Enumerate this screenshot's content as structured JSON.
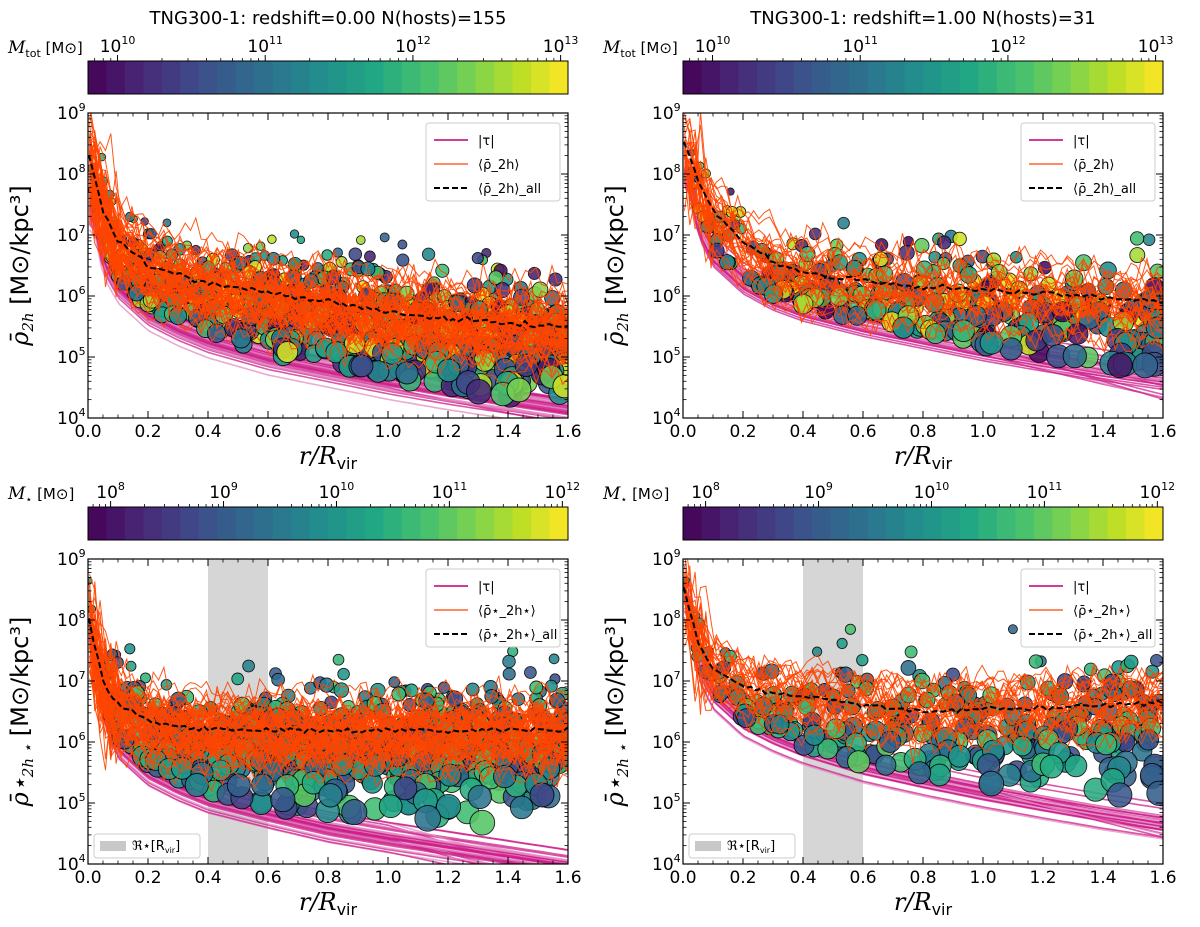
{
  "chart_data": [
    {
      "type": "scatter",
      "panel": "top-left",
      "title": "TNG300-1: redshift=0.00  N(hosts)=155",
      "colorbar": {
        "label": "M_tot [M⊙]",
        "label_main": "M",
        "label_sub": "tot",
        "label_unit": "[M⊙]",
        "ticks": [
          "10",
          "10",
          "10",
          "10"
        ],
        "tick_exps": [
          "10",
          "11",
          "12",
          "13"
        ],
        "range_log": [
          9.8,
          13.05
        ]
      },
      "xlabel": "r/R_vir",
      "xlabel_main": "r/R",
      "xlabel_sub": "vir",
      "ylabel": "ρ̄_2h [M⊙/kpc³]",
      "ylabel_sym": "ρ̄",
      "ylabel_sub": "2h",
      "ylabel_unit": "[M⊙/kpc³]",
      "xlim": [
        0.0,
        1.6
      ],
      "ylim_log": [
        4,
        9
      ],
      "xticks": [
        "0.0",
        "0.2",
        "0.4",
        "0.6",
        "0.8",
        "1.0",
        "1.2",
        "1.4",
        "1.6"
      ],
      "yticks": [
        "10",
        "10",
        "10",
        "10",
        "10",
        "10"
      ],
      "ytick_exps": [
        "4",
        "5",
        "6",
        "7",
        "8",
        "9"
      ],
      "legend": {
        "tau": "|τ|",
        "mean": "⟨ρ̄_2h⟩",
        "mean_sub": "2h",
        "all": "⟨ρ̄_2h⟩_all",
        "all_sub": "all"
      },
      "tau_curve": {
        "x": [
          0.02,
          0.05,
          0.1,
          0.2,
          0.3,
          0.4,
          0.6,
          0.8,
          1.0,
          1.2,
          1.4,
          1.6
        ],
        "log_y": [
          7.4,
          6.65,
          6.2,
          5.75,
          5.5,
          5.3,
          5.02,
          4.82,
          4.62,
          4.45,
          4.3,
          4.15
        ],
        "n_hosts": 155
      },
      "mean_all": {
        "x": [
          0.0,
          0.02,
          0.05,
          0.1,
          0.2,
          0.3,
          0.4,
          0.6,
          0.8,
          1.0,
          1.2,
          1.4,
          1.6
        ],
        "log_y": [
          8.35,
          7.95,
          7.4,
          6.9,
          6.5,
          6.35,
          6.22,
          6.05,
          5.9,
          5.75,
          5.62,
          5.55,
          5.5
        ]
      },
      "scatter_summary": {
        "n_points": 650,
        "log_y_floor": 4.2,
        "log_y_center": 5.7,
        "spread": 0.9,
        "color_range_log": [
          9.8,
          13.0
        ]
      },
      "band": null
    },
    {
      "type": "scatter",
      "panel": "top-right",
      "title": "TNG300-1: redshift=1.00  N(hosts)=31",
      "colorbar": {
        "label": "M_tot [M⊙]",
        "label_main": "M",
        "label_sub": "tot",
        "label_unit": "[M⊙]",
        "ticks": [
          "10",
          "10",
          "10",
          "10"
        ],
        "tick_exps": [
          "10",
          "11",
          "12",
          "13"
        ],
        "range_log": [
          9.8,
          13.05
        ]
      },
      "xlabel": "r/R_vir",
      "xlabel_main": "r/R",
      "xlabel_sub": "vir",
      "ylabel": "ρ̄_2h [M⊙/kpc³]",
      "ylabel_sym": "ρ̄",
      "ylabel_sub": "2h",
      "ylabel_unit": "[M⊙/kpc³]",
      "xlim": [
        0.0,
        1.6
      ],
      "ylim_log": [
        4,
        9
      ],
      "xticks": [
        "0.0",
        "0.2",
        "0.4",
        "0.6",
        "0.8",
        "1.0",
        "1.2",
        "1.4",
        "1.6"
      ],
      "yticks": [
        "10",
        "10",
        "10",
        "10",
        "10",
        "10"
      ],
      "ytick_exps": [
        "4",
        "5",
        "6",
        "7",
        "8",
        "9"
      ],
      "legend": {
        "tau": "|τ|",
        "mean": "⟨ρ̄_2h⟩",
        "mean_sub": "2h",
        "all": "⟨ρ̄_2h⟩_all",
        "all_sub": "all"
      },
      "tau_curve": {
        "x": [
          0.02,
          0.05,
          0.1,
          0.2,
          0.3,
          0.4,
          0.6,
          0.8,
          1.0,
          1.2,
          1.4,
          1.6
        ],
        "log_y": [
          8.0,
          7.2,
          6.7,
          6.25,
          5.98,
          5.8,
          5.55,
          5.35,
          5.15,
          4.98,
          4.82,
          4.68
        ],
        "n_hosts": 31
      },
      "mean_all": {
        "x": [
          0.0,
          0.02,
          0.05,
          0.1,
          0.2,
          0.3,
          0.4,
          0.6,
          0.8,
          1.0,
          1.2,
          1.4,
          1.6
        ],
        "log_y": [
          8.6,
          8.3,
          7.9,
          7.4,
          6.9,
          6.55,
          6.4,
          6.25,
          6.15,
          6.1,
          6.05,
          5.98,
          5.9
        ]
      },
      "scatter_summary": {
        "n_points": 300,
        "log_y_floor": 4.6,
        "log_y_center": 6.2,
        "spread": 0.8,
        "color_range_log": [
          9.8,
          13.0
        ]
      },
      "band": null
    },
    {
      "type": "scatter",
      "panel": "bottom-left",
      "title": "",
      "colorbar": {
        "label": "M⋆ [M⊙]",
        "label_main": "M",
        "label_sub": "⋆",
        "label_unit": "[M⊙]",
        "ticks": [
          "10",
          "10",
          "10",
          "10",
          "10"
        ],
        "tick_exps": [
          "8",
          "9",
          "10",
          "11",
          "12"
        ],
        "range_log": [
          7.8,
          12.05
        ]
      },
      "xlabel": "r/R_vir",
      "xlabel_main": "r/R",
      "xlabel_sub": "vir",
      "ylabel": "ρ̄⋆_2h⋆ [M⊙/kpc³]",
      "ylabel_sym": "ρ̄⋆",
      "ylabel_sub": "2h ⋆",
      "ylabel_unit": "[M⊙/kpc³]",
      "xlim": [
        0.0,
        1.6
      ],
      "ylim_log": [
        4,
        9
      ],
      "xticks": [
        "0.0",
        "0.2",
        "0.4",
        "0.6",
        "0.8",
        "1.0",
        "1.2",
        "1.4",
        "1.6"
      ],
      "yticks": [
        "10",
        "10",
        "10",
        "10",
        "10",
        "10"
      ],
      "ytick_exps": [
        "4",
        "5",
        "6",
        "7",
        "8",
        "9"
      ],
      "legend": {
        "tau": "|τ|",
        "mean": "⟨ρ̄⋆_2h⋆⟩",
        "mean_sub": "2h⋆",
        "all": "⟨ρ̄⋆_2h⋆⟩_all",
        "all_sub": "all"
      },
      "tau_curve": {
        "x": [
          0.02,
          0.05,
          0.1,
          0.2,
          0.3,
          0.4,
          0.6,
          0.8,
          1.0,
          1.2,
          1.4,
          1.6
        ],
        "log_y": [
          7.8,
          6.6,
          6.0,
          5.55,
          5.3,
          5.1,
          4.85,
          4.62,
          4.45,
          4.3,
          4.15,
          4.0
        ],
        "n_hosts": 155
      },
      "mean_all": {
        "x": [
          0.0,
          0.02,
          0.05,
          0.1,
          0.2,
          0.3,
          0.4,
          0.6,
          0.8,
          1.0,
          1.2,
          1.4,
          1.6
        ],
        "log_y": [
          8.1,
          7.6,
          7.0,
          6.6,
          6.35,
          6.25,
          6.22,
          6.2,
          6.18,
          6.2,
          6.18,
          6.2,
          6.2
        ]
      },
      "scatter_summary": {
        "n_points": 650,
        "log_y_floor": 4.6,
        "log_y_center": 6.3,
        "spread": 0.9,
        "color_range_log": [
          8.6,
          11.0
        ]
      },
      "band": {
        "x": [
          0.4,
          0.6
        ],
        "label": "ℜ⋆[R_vir]",
        "label_main": "ℜ⋆[R",
        "label_sub": "vir",
        "label_end": "]"
      }
    },
    {
      "type": "scatter",
      "panel": "bottom-right",
      "title": "",
      "colorbar": {
        "label": "M⋆ [M⊙]",
        "label_main": "M",
        "label_sub": "⋆",
        "label_unit": "[M⊙]",
        "ticks": [
          "10",
          "10",
          "10",
          "10",
          "10"
        ],
        "tick_exps": [
          "8",
          "9",
          "10",
          "11",
          "12"
        ],
        "range_log": [
          7.8,
          12.05
        ]
      },
      "xlabel": "r/R_vir",
      "xlabel_main": "r/R",
      "xlabel_sub": "vir",
      "ylabel": "ρ̄⋆_2h⋆ [M⊙/kpc³]",
      "ylabel_sym": "ρ̄⋆",
      "ylabel_sub": "2h ⋆",
      "ylabel_unit": "[M⊙/kpc³]",
      "xlim": [
        0.0,
        1.6
      ],
      "ylim_log": [
        4,
        9
      ],
      "xticks": [
        "0.0",
        "0.2",
        "0.4",
        "0.6",
        "0.8",
        "1.0",
        "1.2",
        "1.4",
        "1.6"
      ],
      "yticks": [
        "10",
        "10",
        "10",
        "10",
        "10",
        "10"
      ],
      "ytick_exps": [
        "4",
        "5",
        "6",
        "7",
        "8",
        "9"
      ],
      "legend": {
        "tau": "|τ|",
        "mean": "⟨ρ̄⋆_2h⋆⟩",
        "mean_sub": "2h⋆",
        "all": "⟨ρ̄⋆_2h⋆⟩_all",
        "all_sub": "all"
      },
      "tau_curve": {
        "x": [
          0.02,
          0.05,
          0.1,
          0.2,
          0.3,
          0.4,
          0.6,
          0.8,
          1.0,
          1.2,
          1.4,
          1.6
        ],
        "log_y": [
          8.4,
          7.3,
          6.8,
          6.35,
          6.1,
          5.9,
          5.6,
          5.38,
          5.18,
          5.0,
          4.83,
          4.68
        ],
        "n_hosts": 31
      },
      "mean_all": {
        "x": [
          0.0,
          0.02,
          0.05,
          0.1,
          0.2,
          0.3,
          0.4,
          0.6,
          0.8,
          1.0,
          1.2,
          1.4,
          1.6
        ],
        "log_y": [
          8.6,
          8.2,
          7.6,
          7.2,
          6.9,
          6.8,
          6.75,
          6.6,
          6.5,
          6.55,
          6.55,
          6.6,
          6.65
        ]
      },
      "scatter_summary": {
        "n_points": 300,
        "log_y_floor": 4.8,
        "log_y_center": 6.6,
        "spread": 0.9,
        "color_range_log": [
          8.6,
          11.0
        ]
      },
      "band": {
        "x": [
          0.4,
          0.6
        ],
        "label": "ℜ⋆[R_vir]",
        "label_main": "ℜ⋆[R",
        "label_sub": "vir",
        "label_end": "]"
      }
    }
  ],
  "colors": {
    "tau": "#cc1f8a",
    "tau_light": "#e48cc4",
    "mean": "#ff4500",
    "mean_all": "#000000",
    "band": "#c8c8c8",
    "viridis": [
      "#440154",
      "#482475",
      "#414487",
      "#355f8d",
      "#2a788e",
      "#21918c",
      "#22a884",
      "#44bf70",
      "#7ad151",
      "#bddf26",
      "#fde725"
    ]
  }
}
